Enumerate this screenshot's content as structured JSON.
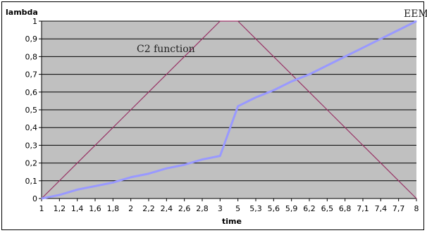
{
  "chart_data": {
    "type": "line",
    "ylabel": "lambda",
    "xlabel": "time",
    "categories": [
      "1",
      "1,2",
      "1,4",
      "1,6",
      "1,8",
      "2",
      "2,2",
      "2,4",
      "2,6",
      "2,8",
      "3",
      "5",
      "5,3",
      "5,6",
      "5,9",
      "6,2",
      "6,5",
      "6,8",
      "7,1",
      "7,4",
      "7,7",
      "8"
    ],
    "yticks": [
      "0",
      "0,1",
      "0,2",
      "0,3",
      "0,4",
      "0,5",
      "0,6",
      "0,7",
      "0,8",
      "0,9",
      "1"
    ],
    "ylim": [
      0,
      1
    ],
    "grid": true,
    "series": [
      {
        "name": "C2 function",
        "color": "#993366",
        "values": [
          0,
          0.1,
          0.2,
          0.3,
          0.4,
          0.5,
          0.6,
          0.7,
          0.8,
          0.9,
          1,
          1,
          0.9,
          0.8,
          0.7,
          0.6,
          0.5,
          0.4,
          0.3,
          0.2,
          0.1,
          0
        ]
      },
      {
        "name": "EEM",
        "color": "#9999ff",
        "values": [
          0,
          0.02,
          0.05,
          0.07,
          0.09,
          0.12,
          0.14,
          0.17,
          0.19,
          0.22,
          0.24,
          0.52,
          0.57,
          0.61,
          0.66,
          0.7,
          0.75,
          0.8,
          0.85,
          0.9,
          0.95,
          1
        ]
      }
    ]
  }
}
